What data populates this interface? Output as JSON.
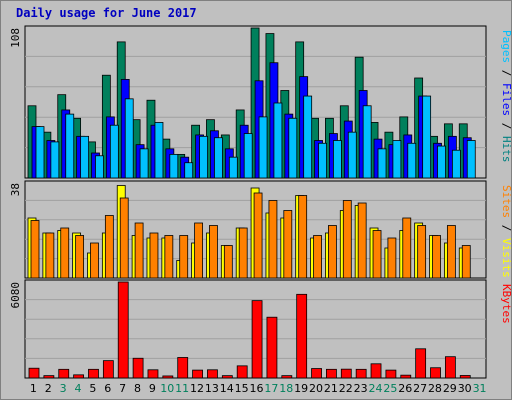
{
  "title": "Daily usage for June 2017",
  "axis_max": {
    "top": "108",
    "mid": "38",
    "bottom": "6080"
  },
  "legend": {
    "top": [
      {
        "text": "Pages",
        "color": "#00c0ff"
      },
      {
        "text": " / ",
        "color": "#000000"
      },
      {
        "text": "Files",
        "color": "#0000ff"
      },
      {
        "text": " / ",
        "color": "#000000"
      },
      {
        "text": "Hits",
        "color": "#008080"
      }
    ],
    "mid": [
      {
        "text": "Sites",
        "color": "#ff8000"
      },
      {
        "text": " / ",
        "color": "#000000"
      },
      {
        "text": "Visits",
        "color": "#ffff00"
      }
    ],
    "bottom": [
      {
        "text": "KBytes",
        "color": "#ff0000"
      }
    ]
  },
  "colors": {
    "hits": "#00805c",
    "files": "#0000ff",
    "pages": "#00c0ff",
    "visits": "#ffff00",
    "sites": "#ff8000",
    "kbytes": "#ff0000",
    "plot_bg": "#c0c0c0",
    "grid": "#a0a0a0",
    "weekend_label": "#00805c"
  },
  "chart_data": [
    {
      "type": "bar",
      "ylim": [
        0,
        108
      ],
      "categories": [
        "1",
        "2",
        "3",
        "4",
        "5",
        "6",
        "7",
        "8",
        "9",
        "10",
        "11",
        "12",
        "13",
        "14",
        "15",
        "16",
        "17",
        "18",
        "19",
        "20",
        "21",
        "22",
        "23",
        "24",
        "25",
        "26",
        "27",
        "28",
        "29",
        "30",
        "31"
      ],
      "series": [
        {
          "name": "Hits",
          "values": [
            52,
            33,
            60,
            43,
            26,
            74,
            98,
            42,
            56,
            28,
            17,
            38,
            42,
            31,
            49,
            108,
            104,
            63,
            98,
            43,
            43,
            52,
            87,
            40,
            33,
            44,
            72,
            30,
            39,
            39,
            0
          ]
        },
        {
          "name": "Files",
          "values": [
            37,
            27,
            49,
            30,
            18,
            44,
            71,
            24,
            38,
            21,
            15,
            31,
            34,
            21,
            38,
            70,
            83,
            46,
            73,
            27,
            32,
            41,
            63,
            28,
            24,
            31,
            59,
            25,
            30,
            29,
            0
          ]
        },
        {
          "name": "Pages",
          "values": [
            37,
            26,
            46,
            30,
            16,
            38,
            57,
            21,
            40,
            17,
            11,
            30,
            29,
            15,
            32,
            44,
            54,
            43,
            59,
            25,
            27,
            33,
            52,
            21,
            27,
            25,
            59,
            23,
            20,
            27,
            0
          ]
        }
      ]
    },
    {
      "type": "bar",
      "ylim": [
        0,
        38
      ],
      "categories": [
        "1",
        "2",
        "3",
        "4",
        "5",
        "6",
        "7",
        "8",
        "9",
        "10",
        "11",
        "12",
        "13",
        "14",
        "15",
        "16",
        "17",
        "18",
        "19",
        "20",
        "21",
        "22",
        "23",
        "24",
        "25",
        "26",
        "27",
        "28",
        "29",
        "30",
        "31"
      ],
      "series": [
        {
          "name": "Visits",
          "values": [
            24,
            18,
            19,
            18,
            10,
            18,
            37,
            17,
            16,
            16,
            7,
            14,
            18,
            13,
            20,
            36,
            26,
            24,
            33,
            16,
            18,
            27,
            29,
            20,
            12,
            19,
            22,
            17,
            14,
            12,
            0
          ]
        },
        {
          "name": "Sites",
          "values": [
            23,
            18,
            20,
            17,
            14,
            25,
            32,
            22,
            18,
            17,
            17,
            22,
            21,
            13,
            20,
            34,
            31,
            27,
            33,
            17,
            21,
            31,
            30,
            19,
            16,
            24,
            21,
            17,
            21,
            13,
            0
          ]
        }
      ]
    },
    {
      "type": "bar",
      "ylim": [
        0,
        6080
      ],
      "categories": [
        "1",
        "2",
        "3",
        "4",
        "5",
        "6",
        "7",
        "8",
        "9",
        "10",
        "11",
        "12",
        "13",
        "14",
        "15",
        "16",
        "17",
        "18",
        "19",
        "20",
        "21",
        "22",
        "23",
        "24",
        "25",
        "26",
        "27",
        "28",
        "29",
        "30",
        "31"
      ],
      "series": [
        {
          "name": "KBytes",
          "values": [
            620,
            150,
            550,
            200,
            550,
            1100,
            6080,
            1250,
            520,
            130,
            1300,
            500,
            520,
            150,
            770,
            4900,
            3850,
            150,
            5300,
            600,
            550,
            560,
            550,
            900,
            500,
            180,
            1850,
            650,
            1350,
            160,
            0
          ]
        }
      ]
    }
  ],
  "weekend_days": [
    3,
    4,
    10,
    11,
    17,
    18,
    24,
    25,
    31
  ]
}
